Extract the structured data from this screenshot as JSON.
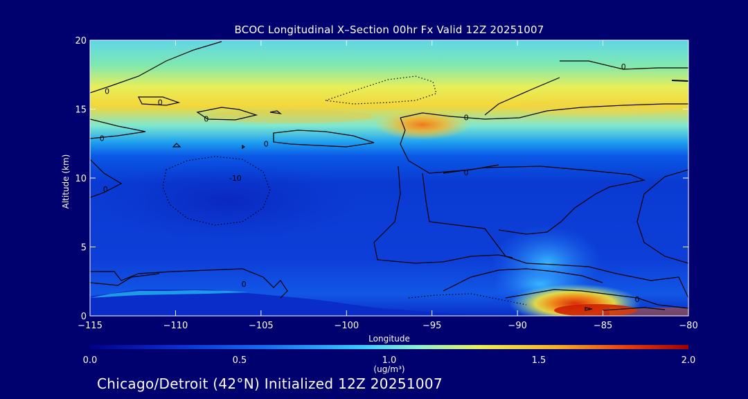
{
  "chart_data": {
    "type": "heatmap",
    "title": "BCOC Longitudinal X–Section 00hr  Fx Valid 12Z 20251007",
    "xlabel": "Longitude",
    "ylabel": "Altitude (km)",
    "xlim": [
      -115,
      -80
    ],
    "ylim": [
      0,
      20
    ],
    "xticks": [
      -115,
      -110,
      -105,
      -100,
      -95,
      -90,
      -85,
      -80
    ],
    "xtick_labels": [
      "−115",
      "−110",
      "−105",
      "−100",
      "−95",
      "−90",
      "−85",
      "−80"
    ],
    "yticks": [
      0,
      5,
      10,
      15,
      20
    ],
    "ytick_labels": [
      "0",
      "5",
      "10",
      "15",
      "20"
    ],
    "colorbar": {
      "min": 0.0,
      "max": 2.0,
      "ticks": [
        0.0,
        0.5,
        1.0,
        1.5,
        2.0
      ],
      "tick_labels": [
        "0.0",
        "0.5",
        "1.0",
        "1.5",
        "2.0"
      ],
      "units": "(ug/m³)"
    },
    "features": [
      {
        "lon": -95,
        "alt": 13.8,
        "value": 1.45
      },
      {
        "lon": -88,
        "alt": 0.8,
        "value": 1.6
      },
      {
        "lon": -86,
        "alt": 0.2,
        "value": 2.0
      }
    ],
    "contour_labels": [
      {
        "text": "0",
        "lon": -114,
        "alt": 16.3
      },
      {
        "text": "0",
        "lon": -110.9,
        "alt": 15.5
      },
      {
        "text": "0",
        "lon": -114.3,
        "alt": 12.9
      },
      {
        "text": "0",
        "lon": -108.2,
        "alt": 14.3
      },
      {
        "text": "0",
        "lon": -104.7,
        "alt": 12.5
      },
      {
        "text": "0",
        "lon": -93,
        "alt": 14.4
      },
      {
        "text": "0",
        "lon": -83.8,
        "alt": 18.1
      },
      {
        "text": "0",
        "lon": -114.1,
        "alt": 9.2
      },
      {
        "text": "-10",
        "lon": -106.5,
        "alt": 10.0
      },
      {
        "text": "0",
        "lon": -93,
        "alt": 10.4
      },
      {
        "text": "0",
        "lon": -106,
        "alt": 2.3
      },
      {
        "text": "0",
        "lon": -83,
        "alt": 1.2
      }
    ]
  },
  "footer": "Chicago/Detroit (42°N) Initialized 12Z 20251007"
}
